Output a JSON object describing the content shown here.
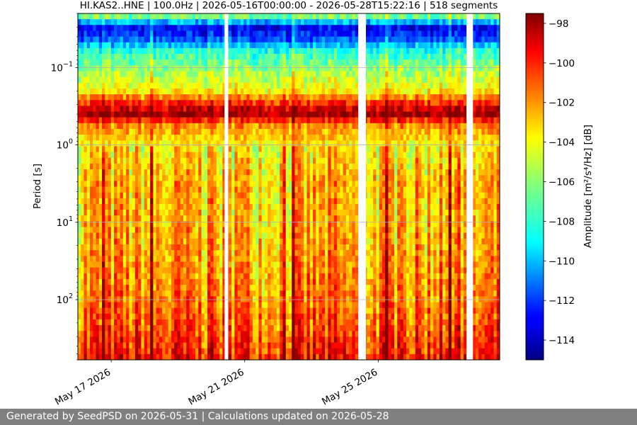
{
  "chart_data": {
    "type": "heatmap",
    "title": "HI.KAS2..HNE | 100.0Hz | 2026-05-16T00:00:00 - 2026-05-28T15:22:16 | 518 segments",
    "xlabel": "",
    "ylabel": "Period [s]",
    "x_range": [
      "2026-05-16T00:00:00",
      "2026-05-28T15:22:16"
    ],
    "y_scale": "log",
    "y_range": [
      0.02,
      600
    ],
    "x_ticks": [
      {
        "date": "2026-05-17",
        "label": "May 17 2026"
      },
      {
        "date": "2026-05-21",
        "label": "May 21 2026"
      },
      {
        "date": "2026-05-25",
        "label": "May 25 2026"
      }
    ],
    "y_ticks": [
      {
        "value": 0.1,
        "base": "10",
        "exp": "−1"
      },
      {
        "value": 1,
        "base": "10",
        "exp": "0"
      },
      {
        "value": 10,
        "base": "10",
        "exp": "1"
      },
      {
        "value": 100,
        "base": "10",
        "exp": "2"
      }
    ],
    "grid": true,
    "colormap": "jet",
    "colorbar": {
      "label": "Amplitude [m²/s⁴/Hz] [dB]",
      "range": [
        -115,
        -97.5
      ],
      "ticks": [
        {
          "value": -98,
          "label": "−98"
        },
        {
          "value": -100,
          "label": "−100"
        },
        {
          "value": -102,
          "label": "−102"
        },
        {
          "value": -104,
          "label": "−104"
        },
        {
          "value": -106,
          "label": "−106"
        },
        {
          "value": -108,
          "label": "−108"
        },
        {
          "value": -110,
          "label": "−110"
        },
        {
          "value": -112,
          "label": "−112"
        },
        {
          "value": -114,
          "label": "−114"
        }
      ]
    },
    "data_gaps": [
      [
        "2026-05-20T09:30:00",
        "2026-05-20T12:10:00"
      ],
      [
        "2026-05-24T09:40:00",
        "2026-05-24T15:10:00"
      ],
      [
        "2026-05-27T15:30:00",
        "2026-05-27T20:10:00"
      ]
    ],
    "amplitude_profile_db": [
      {
        "period": 0.02,
        "db": -105
      },
      {
        "period": 0.025,
        "db": -109
      },
      {
        "period": 0.03,
        "db": -113
      },
      {
        "period": 0.04,
        "db": -112
      },
      {
        "period": 0.06,
        "db": -108
      },
      {
        "period": 0.1,
        "db": -106
      },
      {
        "period": 0.2,
        "db": -104
      },
      {
        "period": 0.3,
        "db": -100
      },
      {
        "period": 0.4,
        "db": -98
      },
      {
        "period": 0.55,
        "db": -102
      },
      {
        "period": 1,
        "db": -104
      },
      {
        "period": 3,
        "db": -103
      },
      {
        "period": 10,
        "db": -103
      },
      {
        "period": 100,
        "db": -102
      },
      {
        "period": 300,
        "db": -101
      },
      {
        "period": 600,
        "db": -100
      }
    ]
  },
  "footer": {
    "text": "Generated by SeedPSD on 2026-05-31 | Calculations updated on 2026-05-28"
  }
}
